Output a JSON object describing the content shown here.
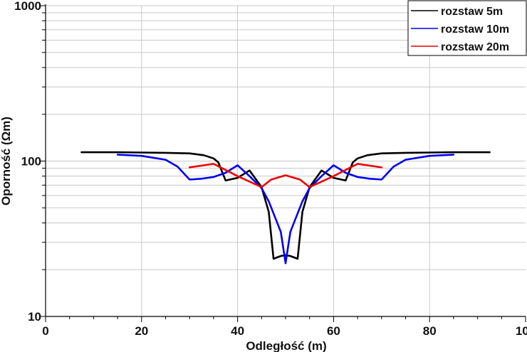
{
  "chart_data": {
    "type": "line",
    "xlabel": "Odległość (m)",
    "ylabel": "Oporność (Ωm)",
    "xlim": [
      0,
      100
    ],
    "ylim": [
      10,
      1000
    ],
    "yscale": "log",
    "grid": true,
    "legend_position": "top-right",
    "x_ticks": [
      "0",
      "20",
      "40",
      "60",
      "80",
      "100"
    ],
    "y_ticks": [
      "10",
      "100",
      "1000"
    ],
    "series": [
      {
        "name": "rozstaw 5m",
        "color": "#000000",
        "x": [
          7.5,
          15,
          20,
          25,
          30,
          33,
          35,
          36,
          37.5,
          40,
          42.5,
          45,
          46.5,
          47.5,
          49,
          50,
          51,
          52.5,
          53.5,
          55,
          57.5,
          60,
          62.5,
          64,
          65,
          67,
          70,
          75,
          80,
          85,
          92.5
        ],
        "y": [
          114,
          114,
          113.5,
          113,
          112,
          109,
          104,
          98,
          75,
          78,
          87,
          68,
          47,
          23.5,
          24.5,
          24.8,
          24.5,
          23.5,
          47,
          68,
          87,
          78,
          75,
          98,
          104,
          109,
          112,
          113,
          113.5,
          114,
          114
        ]
      },
      {
        "name": "rozstaw 10m",
        "color": "#0000ee",
        "x": [
          15,
          20,
          25,
          27.5,
          30,
          32.5,
          35,
          37.5,
          40,
          42.5,
          45,
          46.5,
          48,
          49,
          50,
          51,
          52,
          53.5,
          55,
          57.5,
          60,
          62.5,
          65,
          67.5,
          70,
          72.5,
          75,
          80,
          85
        ],
        "y": [
          110,
          108,
          102,
          92,
          76,
          77,
          79,
          84,
          94,
          80,
          67,
          55,
          42,
          35,
          22,
          35,
          42,
          55,
          67,
          80,
          94,
          84,
          79,
          77,
          76,
          92,
          102,
          108,
          110
        ]
      },
      {
        "name": "rozstaw 20m",
        "color": "#ee0000",
        "x": [
          30,
          35,
          40,
          45,
          47,
          50,
          53,
          55,
          60,
          65,
          70
        ],
        "y": [
          91,
          96,
          80,
          68,
          76,
          81,
          76,
          68,
          80,
          96,
          91
        ]
      }
    ]
  }
}
